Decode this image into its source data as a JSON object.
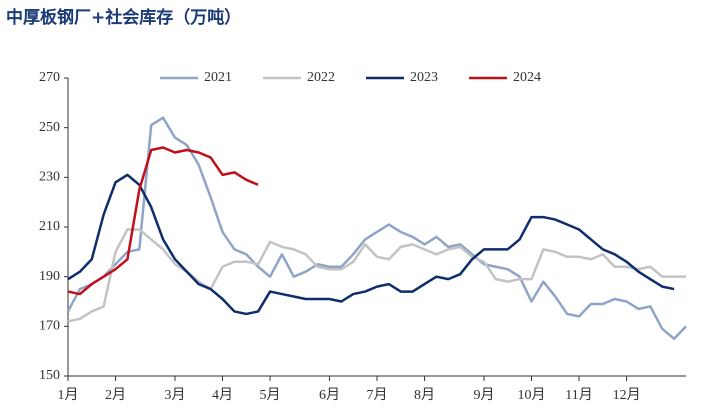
{
  "chart_data": {
    "type": "line",
    "title": "中厚板钢厂+社会库存（万吨）",
    "categories": [
      "1月",
      null,
      null,
      null,
      "2月",
      null,
      null,
      null,
      null,
      "3月",
      null,
      null,
      null,
      "4月",
      null,
      null,
      null,
      "5月",
      null,
      null,
      null,
      null,
      "6月",
      null,
      null,
      null,
      "7月",
      null,
      null,
      null,
      "8月",
      null,
      null,
      null,
      null,
      "9月",
      null,
      null,
      null,
      "10月",
      null,
      null,
      null,
      "11月",
      null,
      null,
      null,
      "12月",
      null,
      null,
      null,
      null,
      null
    ],
    "series": [
      {
        "name": "2021",
        "color": "#8ea5c8",
        "values": [
          176,
          185,
          187,
          190,
          195,
          200,
          201,
          251,
          254,
          246,
          243,
          235,
          222,
          208,
          201,
          199,
          194,
          190,
          199,
          190,
          192,
          195,
          194,
          194,
          199,
          205,
          208,
          211,
          208,
          206,
          203,
          206,
          202,
          203,
          199,
          195,
          194,
          193,
          190,
          180,
          188,
          182,
          175,
          174,
          179,
          179,
          181,
          180,
          177,
          178,
          169,
          165,
          170
        ]
      },
      {
        "name": "2022",
        "color": "#c3c3c3",
        "values": [
          172,
          173,
          176,
          178,
          200,
          209,
          209,
          205,
          201,
          195,
          192,
          188,
          185,
          194,
          196,
          196,
          195,
          204,
          202,
          201,
          199,
          194,
          193,
          193,
          196,
          203,
          198,
          197,
          202,
          203,
          201,
          199,
          201,
          202,
          198,
          196,
          189,
          188,
          189,
          189,
          201,
          200,
          198,
          198,
          197,
          199,
          194,
          194,
          193,
          194,
          190,
          190,
          190
        ]
      },
      {
        "name": "2023",
        "color": "#0d2d6c",
        "values": [
          189,
          192,
          197,
          215,
          228,
          231,
          227,
          218,
          205,
          197,
          192,
          187,
          185,
          181,
          176,
          175,
          176,
          184,
          183,
          182,
          181,
          181,
          181,
          180,
          183,
          184,
          186,
          187,
          184,
          184,
          187,
          190,
          189,
          191,
          197,
          201,
          201,
          201,
          205,
          214,
          214,
          213,
          211,
          209,
          205,
          201,
          199,
          196,
          192,
          189,
          186,
          185,
          null
        ]
      },
      {
        "name": "2024",
        "color": "#c0101c",
        "values": [
          184,
          183,
          187,
          190,
          193,
          197,
          225,
          241,
          242,
          240,
          241,
          240,
          238,
          231,
          232,
          229,
          227,
          null,
          null,
          null,
          null,
          null,
          null,
          null,
          null,
          null,
          null,
          null,
          null,
          null,
          null,
          null,
          null,
          null,
          null,
          null,
          null,
          null,
          null,
          null,
          null,
          null,
          null,
          null,
          null,
          null,
          null,
          null,
          null,
          null,
          null,
          null,
          null
        ]
      }
    ],
    "ylim": [
      150,
      270
    ],
    "yticks": [
      150,
      170,
      190,
      210,
      230,
      250,
      270
    ],
    "grid": false,
    "legend": "top"
  }
}
